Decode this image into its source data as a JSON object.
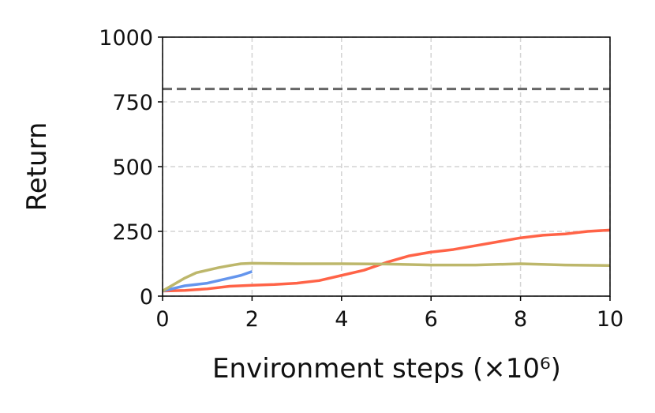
{
  "chart_data": {
    "type": "line",
    "xlabel": "Environment steps (×10⁶)",
    "ylabel": "Return",
    "xlim": [
      0,
      10
    ],
    "ylim": [
      0,
      1000
    ],
    "xticks": [
      0,
      2,
      4,
      6,
      8,
      10
    ],
    "yticks": [
      0,
      250,
      500,
      750,
      1000
    ],
    "grid": true,
    "hline": 800,
    "hline_color": "#666666",
    "series": [
      {
        "color": "#ff6347",
        "x": [
          0,
          0.5,
          1,
          1.5,
          2,
          2.5,
          3,
          3.5,
          4,
          4.5,
          5,
          5.5,
          6,
          6.5,
          7,
          7.5,
          8,
          8.5,
          9,
          9.5,
          10
        ],
        "values": [
          20,
          22,
          28,
          38,
          42,
          45,
          50,
          60,
          80,
          100,
          130,
          155,
          170,
          180,
          195,
          210,
          225,
          235,
          240,
          250,
          255
        ]
      },
      {
        "color": "#6495ed",
        "x": [
          0,
          0.25,
          0.5,
          0.75,
          1,
          1.25,
          1.5,
          1.75,
          2
        ],
        "values": [
          20,
          30,
          40,
          45,
          50,
          60,
          70,
          80,
          95
        ]
      },
      {
        "color": "#bdb76b",
        "x": [
          0,
          0.25,
          0.5,
          0.75,
          1,
          1.25,
          1.5,
          1.75,
          2,
          3,
          4,
          5,
          6,
          7,
          8,
          9,
          10
        ],
        "values": [
          20,
          45,
          70,
          90,
          100,
          110,
          118,
          125,
          127,
          125,
          125,
          124,
          120,
          120,
          125,
          120,
          118
        ]
      }
    ]
  }
}
